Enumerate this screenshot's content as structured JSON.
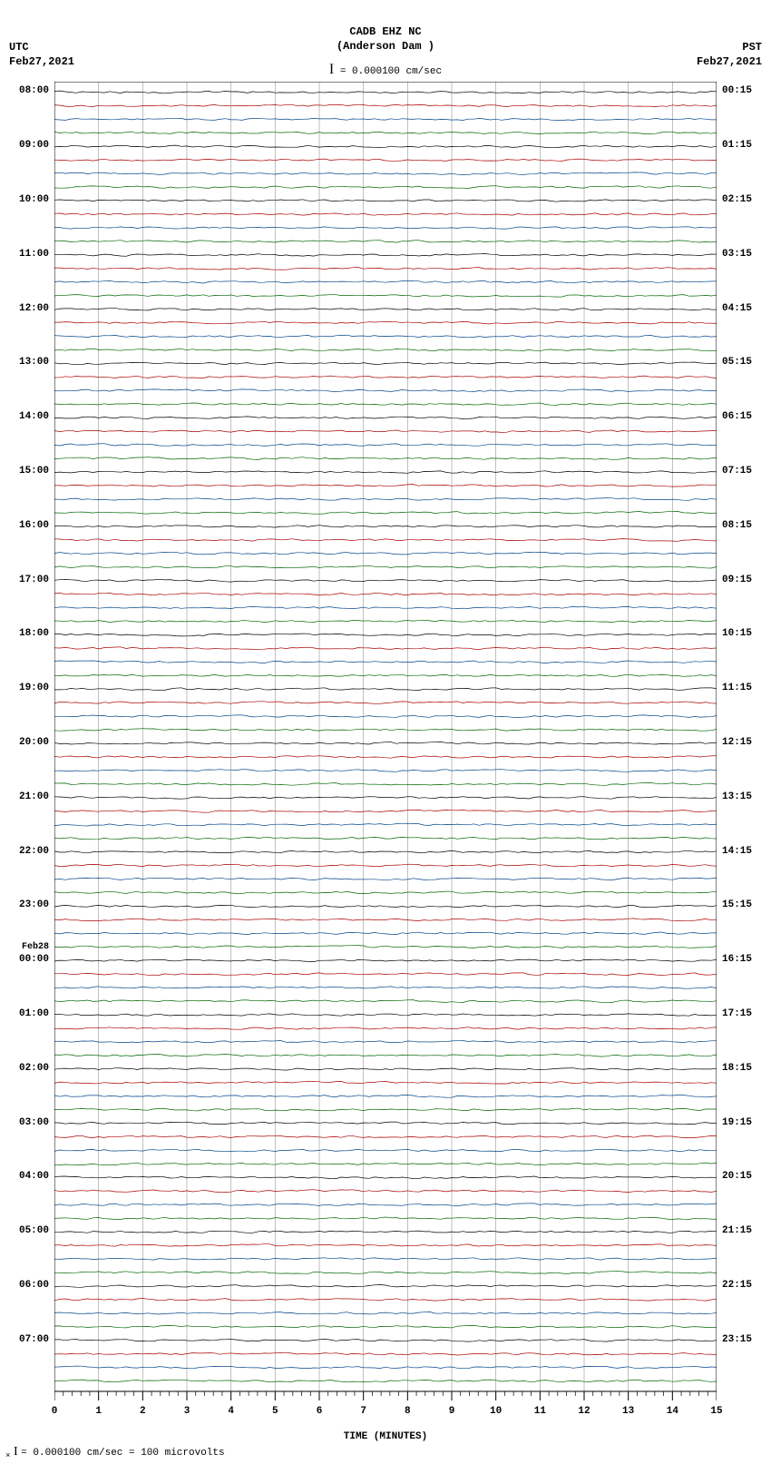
{
  "header": {
    "station_id": "CADB EHZ NC",
    "station_name": "(Anderson Dam )",
    "scale_text": "= 0.000100 cm/sec"
  },
  "left_header": {
    "tz": "UTC",
    "date": "Feb27,2021"
  },
  "right_header": {
    "tz": "PST",
    "date": "Feb27,2021"
  },
  "plot": {
    "type": "seismogram",
    "background_color": "#ffffff",
    "grid_color": "#808080",
    "grid_width": 0.5,
    "trace_amplitude": 2.0,
    "trace_noise_freq": 120,
    "x_minutes": 15,
    "x_ticks_major": [
      0,
      1,
      2,
      3,
      4,
      5,
      6,
      7,
      8,
      9,
      10,
      11,
      12,
      13,
      14,
      15
    ],
    "x_minor_per_major": 4,
    "x_title": "TIME (MINUTES)",
    "trace_colors": [
      "#000000",
      "#aa0000",
      "#004488",
      "#006600"
    ],
    "num_traces": 96,
    "left_labels": [
      {
        "row": 0,
        "text": "08:00"
      },
      {
        "row": 4,
        "text": "09:00"
      },
      {
        "row": 8,
        "text": "10:00"
      },
      {
        "row": 12,
        "text": "11:00"
      },
      {
        "row": 16,
        "text": "12:00"
      },
      {
        "row": 20,
        "text": "13:00"
      },
      {
        "row": 24,
        "text": "14:00"
      },
      {
        "row": 28,
        "text": "15:00"
      },
      {
        "row": 32,
        "text": "16:00"
      },
      {
        "row": 36,
        "text": "17:00"
      },
      {
        "row": 40,
        "text": "18:00"
      },
      {
        "row": 44,
        "text": "19:00"
      },
      {
        "row": 48,
        "text": "20:00"
      },
      {
        "row": 52,
        "text": "21:00"
      },
      {
        "row": 56,
        "text": "22:00"
      },
      {
        "row": 60,
        "text": "23:00"
      },
      {
        "row": 64,
        "text": "00:00",
        "date_above": "Feb28"
      },
      {
        "row": 68,
        "text": "01:00"
      },
      {
        "row": 72,
        "text": "02:00"
      },
      {
        "row": 76,
        "text": "03:00"
      },
      {
        "row": 80,
        "text": "04:00"
      },
      {
        "row": 84,
        "text": "05:00"
      },
      {
        "row": 88,
        "text": "06:00"
      },
      {
        "row": 92,
        "text": "07:00"
      }
    ],
    "right_labels": [
      {
        "row": 0,
        "text": "00:15"
      },
      {
        "row": 4,
        "text": "01:15"
      },
      {
        "row": 8,
        "text": "02:15"
      },
      {
        "row": 12,
        "text": "03:15"
      },
      {
        "row": 16,
        "text": "04:15"
      },
      {
        "row": 20,
        "text": "05:15"
      },
      {
        "row": 24,
        "text": "06:15"
      },
      {
        "row": 28,
        "text": "07:15"
      },
      {
        "row": 32,
        "text": "08:15"
      },
      {
        "row": 36,
        "text": "09:15"
      },
      {
        "row": 40,
        "text": "10:15"
      },
      {
        "row": 44,
        "text": "11:15"
      },
      {
        "row": 48,
        "text": "12:15"
      },
      {
        "row": 52,
        "text": "13:15"
      },
      {
        "row": 56,
        "text": "14:15"
      },
      {
        "row": 60,
        "text": "15:15"
      },
      {
        "row": 64,
        "text": "16:15"
      },
      {
        "row": 68,
        "text": "17:15"
      },
      {
        "row": 72,
        "text": "18:15"
      },
      {
        "row": 76,
        "text": "19:15"
      },
      {
        "row": 80,
        "text": "20:15"
      },
      {
        "row": 84,
        "text": "21:15"
      },
      {
        "row": 88,
        "text": "22:15"
      },
      {
        "row": 92,
        "text": "23:15"
      }
    ]
  },
  "footer": {
    "text": "= 0.000100 cm/sec =    100 microvolts"
  }
}
